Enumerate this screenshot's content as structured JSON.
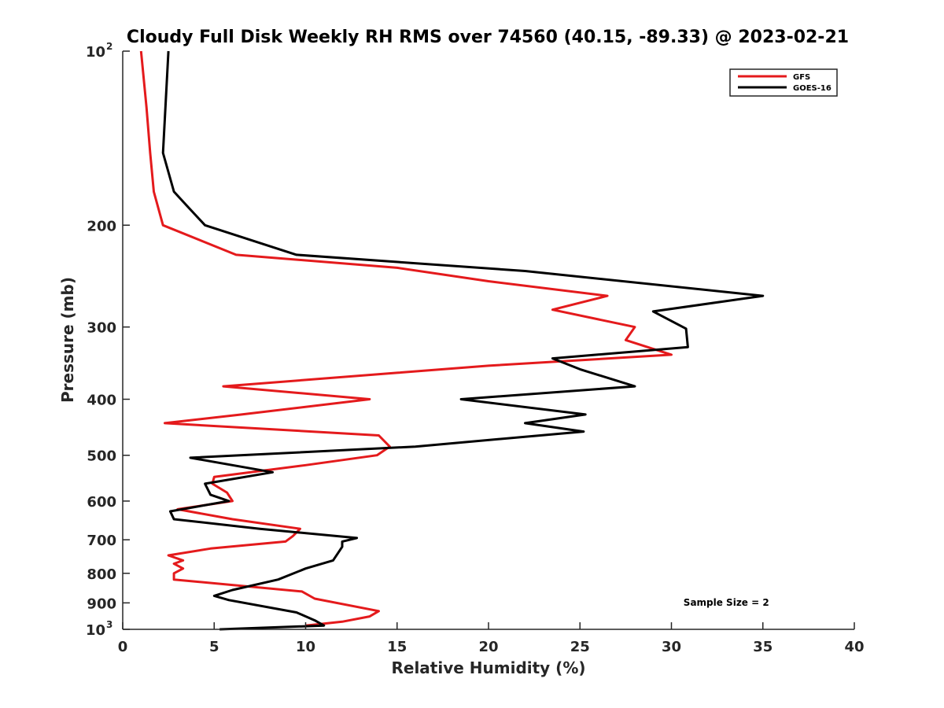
{
  "chart_data": {
    "type": "line",
    "title": "Cloudy Full Disk Weekly RH RMS over 74560 (40.15, -89.33) @ 2023-02-21",
    "xlabel": "Relative Humidity (%)",
    "ylabel": "Pressure (mb)",
    "xlim": [
      0,
      40
    ],
    "ylim": [
      100,
      1000
    ],
    "y_scale": "log",
    "y_reversed": true,
    "grid": false,
    "legend_position": "top-right",
    "x_ticks": [
      "0",
      "5",
      "10",
      "15",
      "20",
      "25",
      "30",
      "35",
      "40"
    ],
    "y_ticks": [
      {
        "value": 100,
        "base": "10",
        "exp": "2"
      },
      {
        "value": 200,
        "label": "200"
      },
      {
        "value": 300,
        "label": "300"
      },
      {
        "value": 400,
        "label": "400"
      },
      {
        "value": 500,
        "label": "500"
      },
      {
        "value": 600,
        "label": "600"
      },
      {
        "value": 700,
        "label": "700"
      },
      {
        "value": 800,
        "label": "800"
      },
      {
        "value": 900,
        "label": "900"
      },
      {
        "value": 1000,
        "base": "10",
        "exp": "3"
      }
    ],
    "series": [
      {
        "name": "GFS",
        "color": "#e41a1c",
        "points": [
          [
            1.0,
            100
          ],
          [
            1.3,
            125
          ],
          [
            1.5,
            150
          ],
          [
            1.7,
            175
          ],
          [
            2.2,
            200
          ],
          [
            6.2,
            225
          ],
          [
            15.0,
            237
          ],
          [
            20.0,
            250
          ],
          [
            26.5,
            265
          ],
          [
            23.5,
            280
          ],
          [
            28.0,
            300
          ],
          [
            27.5,
            316
          ],
          [
            30.0,
            335
          ],
          [
            20.0,
            350
          ],
          [
            15.0,
            360
          ],
          [
            5.5,
            380
          ],
          [
            13.5,
            400
          ],
          [
            6.5,
            425
          ],
          [
            2.3,
            440
          ],
          [
            14.0,
            462
          ],
          [
            14.6,
            483
          ],
          [
            13.9,
            500
          ],
          [
            10.0,
            520
          ],
          [
            5.0,
            545
          ],
          [
            4.9,
            560
          ],
          [
            5.7,
            580
          ],
          [
            6.0,
            600
          ],
          [
            3.0,
            620
          ],
          [
            6.0,
            645
          ],
          [
            9.7,
            670
          ],
          [
            9.3,
            690
          ],
          [
            8.9,
            705
          ],
          [
            4.8,
            725
          ],
          [
            2.5,
            745
          ],
          [
            3.3,
            760
          ],
          [
            2.8,
            770
          ],
          [
            3.3,
            785
          ],
          [
            2.8,
            800
          ],
          [
            2.8,
            820
          ],
          [
            9.8,
            860
          ],
          [
            10.5,
            885
          ],
          [
            14.0,
            930
          ],
          [
            13.5,
            950
          ],
          [
            12.0,
            970
          ],
          [
            10.0,
            985
          ]
        ]
      },
      {
        "name": "GOES-16",
        "color": "#000000",
        "points": [
          [
            2.5,
            100
          ],
          [
            2.2,
            150
          ],
          [
            2.8,
            175
          ],
          [
            3.5,
            185
          ],
          [
            4.5,
            200
          ],
          [
            9.5,
            225
          ],
          [
            22.0,
            240
          ],
          [
            35.0,
            265
          ],
          [
            29.0,
            282
          ],
          [
            30.8,
            302
          ],
          [
            30.9,
            325
          ],
          [
            23.5,
            340
          ],
          [
            25.0,
            355
          ],
          [
            28.0,
            380
          ],
          [
            18.5,
            400
          ],
          [
            25.3,
            425
          ],
          [
            22.0,
            440
          ],
          [
            25.2,
            455
          ],
          [
            16.0,
            483
          ],
          [
            3.7,
            505
          ],
          [
            8.2,
            535
          ],
          [
            4.5,
            560
          ],
          [
            4.8,
            585
          ],
          [
            5.8,
            600
          ],
          [
            2.6,
            625
          ],
          [
            2.8,
            645
          ],
          [
            7.5,
            670
          ],
          [
            12.8,
            695
          ],
          [
            12.0,
            705
          ],
          [
            12.0,
            720
          ],
          [
            11.5,
            760
          ],
          [
            10.0,
            785
          ],
          [
            8.5,
            820
          ],
          [
            6.0,
            855
          ],
          [
            5.0,
            875
          ],
          [
            5.8,
            890
          ],
          [
            9.5,
            935
          ],
          [
            10.5,
            965
          ],
          [
            11.0,
            985
          ],
          [
            5.3,
            1000
          ]
        ]
      }
    ],
    "annotations": [
      {
        "text": "Sample Size = 2",
        "x": 33,
        "y": 910
      }
    ]
  }
}
